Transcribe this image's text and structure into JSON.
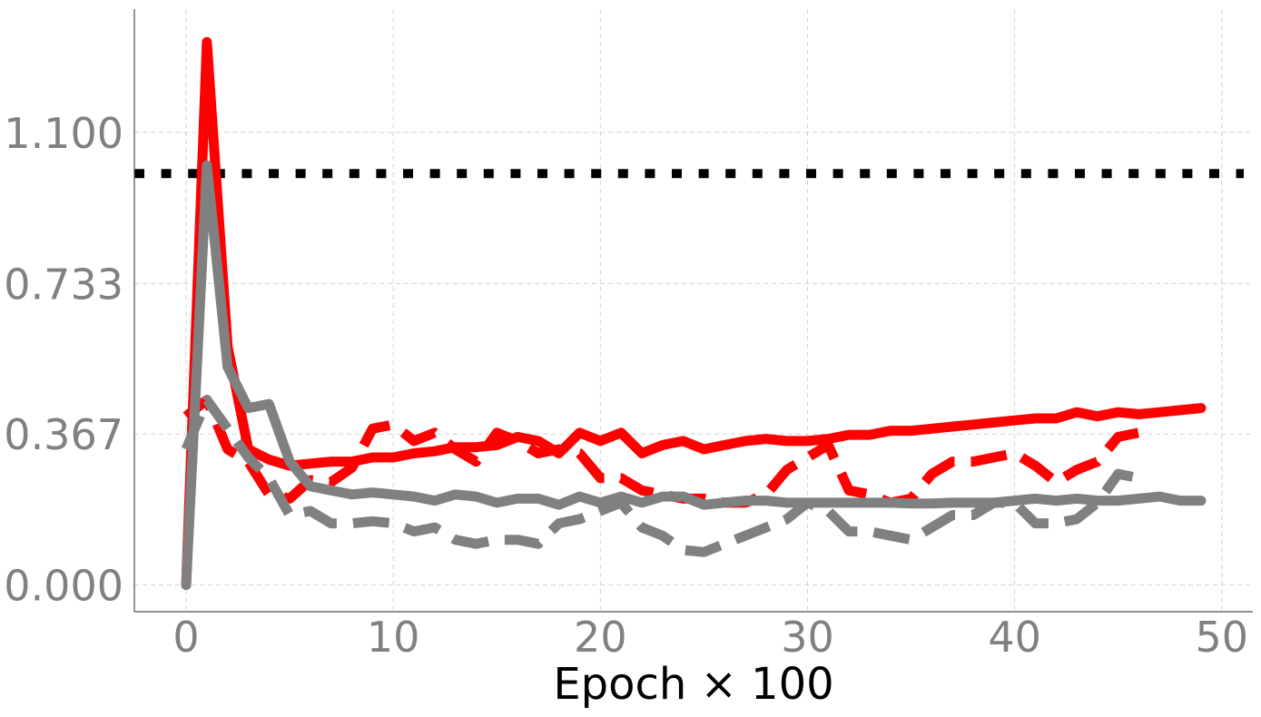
{
  "chart_data": {
    "type": "line",
    "xlabel": "Epoch × 100",
    "ylabel": "",
    "title": "",
    "xlim": [
      -2.5,
      51.5
    ],
    "ylim": [
      -0.065,
      1.4
    ],
    "xticks": [
      0,
      10,
      20,
      30,
      40,
      50
    ],
    "xtick_labels": [
      "0",
      "10",
      "20",
      "30",
      "40",
      "50"
    ],
    "yticks": [
      0.0,
      0.367,
      0.733,
      1.1
    ],
    "ytick_labels": [
      "0.000",
      "0.367",
      "0.733",
      "1.100"
    ],
    "grid": true,
    "reference_line": {
      "y": 1.0,
      "color": "#000000",
      "style": "dotted"
    },
    "series": [
      {
        "color": "#ff0000",
        "style": "solid",
        "x": [
          0,
          1,
          2,
          3,
          4,
          5,
          6,
          7,
          8,
          9,
          10,
          11,
          12,
          13,
          14,
          15,
          16,
          17,
          18,
          19,
          20,
          21,
          22,
          23,
          24,
          25,
          26,
          27,
          28,
          29,
          30,
          31,
          32,
          33,
          34,
          35,
          36,
          37,
          38,
          39,
          40,
          41,
          42,
          43,
          44,
          45,
          46,
          47,
          48,
          49
        ],
        "values": [
          0.0,
          1.32,
          0.58,
          0.33,
          0.305,
          0.29,
          0.295,
          0.3,
          0.3,
          0.31,
          0.31,
          0.32,
          0.325,
          0.335,
          0.335,
          0.34,
          0.36,
          0.35,
          0.32,
          0.37,
          0.35,
          0.37,
          0.32,
          0.34,
          0.35,
          0.33,
          0.34,
          0.35,
          0.355,
          0.35,
          0.35,
          0.355,
          0.365,
          0.365,
          0.375,
          0.375,
          0.38,
          0.385,
          0.39,
          0.395,
          0.4,
          0.405,
          0.405,
          0.42,
          0.41,
          0.42,
          0.415,
          0.42,
          0.425,
          0.43
        ]
      },
      {
        "color": "#ff0000",
        "style": "dashed",
        "x": [
          0,
          1,
          2,
          3,
          4,
          5,
          6,
          7,
          8,
          9,
          10,
          11,
          12,
          13,
          14,
          15,
          16,
          17,
          18,
          19,
          20,
          21,
          22,
          23,
          24,
          25,
          26,
          27,
          28,
          29,
          30,
          31,
          32,
          33,
          34,
          35,
          36,
          37,
          38,
          39,
          40,
          41,
          42,
          43,
          44,
          45,
          46
        ],
        "values": [
          0.41,
          0.45,
          0.33,
          0.3,
          0.22,
          0.21,
          0.255,
          0.25,
          0.285,
          0.38,
          0.39,
          0.35,
          0.37,
          0.33,
          0.3,
          0.37,
          0.35,
          0.32,
          0.33,
          0.32,
          0.26,
          0.26,
          0.23,
          0.22,
          0.21,
          0.21,
          0.2,
          0.2,
          0.22,
          0.28,
          0.31,
          0.34,
          0.23,
          0.22,
          0.2,
          0.21,
          0.27,
          0.3,
          0.3,
          0.31,
          0.32,
          0.29,
          0.25,
          0.28,
          0.3,
          0.36,
          0.37
        ]
      },
      {
        "color": "#808080",
        "style": "solid",
        "x": [
          0,
          1,
          2,
          3,
          4,
          5,
          6,
          7,
          8,
          9,
          10,
          11,
          12,
          13,
          14,
          15,
          16,
          17,
          18,
          19,
          20,
          21,
          22,
          23,
          24,
          25,
          26,
          27,
          28,
          29,
          30,
          31,
          32,
          33,
          34,
          35,
          36,
          37,
          38,
          39,
          40,
          41,
          42,
          43,
          44,
          45,
          46,
          47,
          48,
          49
        ],
        "values": [
          0.0,
          1.02,
          0.53,
          0.43,
          0.44,
          0.3,
          0.24,
          0.23,
          0.22,
          0.225,
          0.22,
          0.215,
          0.205,
          0.22,
          0.215,
          0.2,
          0.21,
          0.21,
          0.195,
          0.215,
          0.2,
          0.215,
          0.2,
          0.215,
          0.215,
          0.195,
          0.2,
          0.205,
          0.205,
          0.2,
          0.2,
          0.2,
          0.2,
          0.2,
          0.2,
          0.198,
          0.198,
          0.2,
          0.2,
          0.2,
          0.205,
          0.21,
          0.205,
          0.21,
          0.205,
          0.205,
          0.21,
          0.215,
          0.205,
          0.205
        ]
      },
      {
        "color": "#808080",
        "style": "dashed",
        "x": [
          0,
          1,
          2,
          3,
          4,
          5,
          6,
          7,
          8,
          9,
          10,
          11,
          12,
          13,
          14,
          15,
          16,
          17,
          18,
          19,
          20,
          21,
          22,
          23,
          24,
          25,
          26,
          27,
          28,
          29,
          30,
          31,
          32,
          33,
          34,
          35,
          36,
          37,
          38,
          39,
          40,
          41,
          42,
          43,
          44,
          45,
          46
        ],
        "values": [
          0.33,
          0.45,
          0.38,
          0.31,
          0.26,
          0.17,
          0.18,
          0.15,
          0.15,
          0.155,
          0.15,
          0.13,
          0.14,
          0.11,
          0.1,
          0.11,
          0.11,
          0.1,
          0.15,
          0.16,
          0.18,
          0.2,
          0.14,
          0.12,
          0.085,
          0.08,
          0.1,
          0.12,
          0.14,
          0.16,
          0.2,
          0.18,
          0.13,
          0.13,
          0.12,
          0.11,
          0.14,
          0.17,
          0.17,
          0.2,
          0.2,
          0.15,
          0.15,
          0.16,
          0.2,
          0.27,
          0.26
        ]
      }
    ]
  }
}
